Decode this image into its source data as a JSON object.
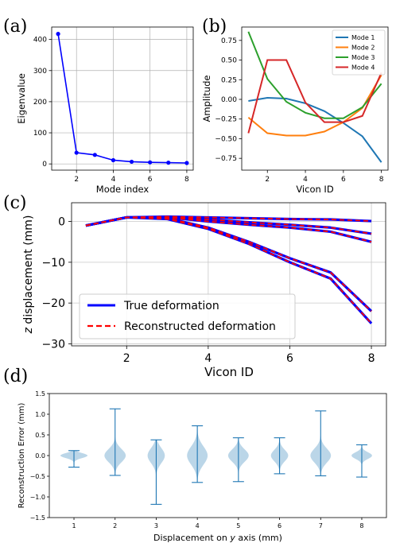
{
  "panel_labels": [
    "(a)",
    "(b)",
    "(c)",
    "(d)"
  ],
  "chart_data": [
    {
      "id": "a",
      "type": "line",
      "xlabel": "Mode index",
      "ylabel": "Eigenvalue",
      "x": [
        1,
        2,
        3,
        4,
        5,
        6,
        7,
        8
      ],
      "values": [
        418,
        36,
        29,
        12,
        7,
        5,
        4,
        3
      ],
      "xlim": [
        0.65,
        8.35
      ],
      "ylim": [
        -20,
        440
      ],
      "xticks": [
        2,
        4,
        6,
        8
      ],
      "yticks": [
        0,
        100,
        200,
        300,
        400
      ],
      "grid": true,
      "color": "#0000ff"
    },
    {
      "id": "b",
      "type": "line",
      "xlabel": "Vicon ID",
      "ylabel": "Amplitude",
      "x": [
        1,
        2,
        3,
        4,
        5,
        6,
        7,
        8
      ],
      "xlim": [
        0.65,
        8.35
      ],
      "ylim": [
        -0.9,
        0.92
      ],
      "xticks": [
        2,
        4,
        6,
        8
      ],
      "yticks": [
        -0.75,
        -0.5,
        -0.25,
        0.0,
        0.25,
        0.5,
        0.75
      ],
      "ytick_labels": [
        "−0.75",
        "−0.50",
        "−0.25",
        "0.00",
        "0.25",
        "0.50",
        "0.75"
      ],
      "grid": false,
      "legend_position": "top-right",
      "series": [
        {
          "name": "Mode 1",
          "color": "#1f77b4",
          "values": [
            -0.02,
            0.02,
            0.01,
            -0.05,
            -0.15,
            -0.3,
            -0.47,
            -0.8
          ]
        },
        {
          "name": "Mode 2",
          "color": "#ff7f0e",
          "values": [
            -0.23,
            -0.43,
            -0.46,
            -0.46,
            -0.41,
            -0.29,
            -0.11,
            0.31
          ]
        },
        {
          "name": "Mode 3",
          "color": "#2ca02c",
          "values": [
            0.86,
            0.26,
            -0.03,
            -0.17,
            -0.24,
            -0.24,
            -0.1,
            0.2
          ]
        },
        {
          "name": "Mode 4",
          "color": "#d62728",
          "values": [
            -0.43,
            0.5,
            0.5,
            -0.04,
            -0.29,
            -0.29,
            -0.21,
            0.34
          ]
        }
      ]
    },
    {
      "id": "c",
      "type": "line",
      "xlabel": "Vicon ID",
      "ylabel": "z displacement (mm)",
      "ylabel_italic": "z",
      "ylabel_rest": " displacement (mm)",
      "x": [
        1,
        2,
        3,
        4,
        5,
        6,
        7,
        8
      ],
      "xlim": [
        0.65,
        8.35
      ],
      "ylim": [
        -30.5,
        4.6
      ],
      "xticks": [
        2,
        4,
        6,
        8
      ],
      "yticks": [
        0,
        -10,
        -20,
        -30
      ],
      "ytick_labels": [
        "0",
        "−10",
        "−20",
        "−30"
      ],
      "grid": true,
      "legend_position": "lower-left",
      "legend": [
        {
          "label": "True deformation",
          "color": "#0000ff",
          "style": "solid"
        },
        {
          "label": "Reconstructed deformation",
          "color": "#ff0000",
          "style": "dashed"
        }
      ],
      "curves": [
        [
          -1.0,
          1.0,
          1.2,
          1.0,
          0.8,
          0.6,
          0.5,
          0.1
        ],
        [
          -1.0,
          1.0,
          1.1,
          0.5,
          -0.2,
          -0.8,
          -1.5,
          -3.0
        ],
        [
          -1.0,
          1.0,
          1.0,
          0.0,
          -0.8,
          -1.5,
          -2.5,
          -5.0
        ],
        [
          -1.0,
          1.0,
          0.8,
          -1.5,
          -5.0,
          -9.0,
          -12.5,
          -22.0
        ],
        [
          -1.0,
          1.0,
          0.6,
          -1.8,
          -5.5,
          -10.0,
          -14.0,
          -25.0
        ]
      ]
    },
    {
      "id": "d",
      "type": "violin",
      "xlabel": "Displacement on y axis (mm)",
      "xlabel_pre": "Displacement on ",
      "xlabel_italic": "y",
      "xlabel_post": " axis (mm)",
      "ylabel": "Reconstruction Error (mm)",
      "categories": [
        1,
        2,
        3,
        4,
        5,
        6,
        7,
        8
      ],
      "xlim": [
        0.4,
        8.6
      ],
      "ylim": [
        -1.5,
        1.5
      ],
      "yticks": [
        -1.5,
        -1.0,
        -0.5,
        0.0,
        0.5,
        1.0,
        1.5
      ],
      "ytick_labels": [
        "−1.5",
        "−1.0",
        "−0.5",
        "0.0",
        "0.5",
        "1.0",
        "1.5"
      ],
      "grid": false,
      "color": "#1f77b4",
      "violins": [
        {
          "min": -0.28,
          "max": 0.12,
          "center": 0.0,
          "spread": 0.06,
          "peak_width": 0.33
        },
        {
          "min": -0.48,
          "max": 1.13,
          "center": 0.0,
          "spread": 0.16,
          "peak_width": 0.26
        },
        {
          "min": -1.18,
          "max": 0.38,
          "center": 0.0,
          "spread": 0.18,
          "peak_width": 0.21
        },
        {
          "min": -0.65,
          "max": 0.72,
          "center": 0.0,
          "spread": 0.22,
          "peak_width": 0.25
        },
        {
          "min": -0.63,
          "max": 0.43,
          "center": 0.0,
          "spread": 0.15,
          "peak_width": 0.25
        },
        {
          "min": -0.44,
          "max": 0.43,
          "center": 0.0,
          "spread": 0.14,
          "peak_width": 0.21
        },
        {
          "min": -0.49,
          "max": 1.08,
          "center": 0.0,
          "spread": 0.17,
          "peak_width": 0.25
        },
        {
          "min": -0.52,
          "max": 0.26,
          "center": 0.0,
          "spread": 0.08,
          "peak_width": 0.25
        }
      ]
    }
  ]
}
